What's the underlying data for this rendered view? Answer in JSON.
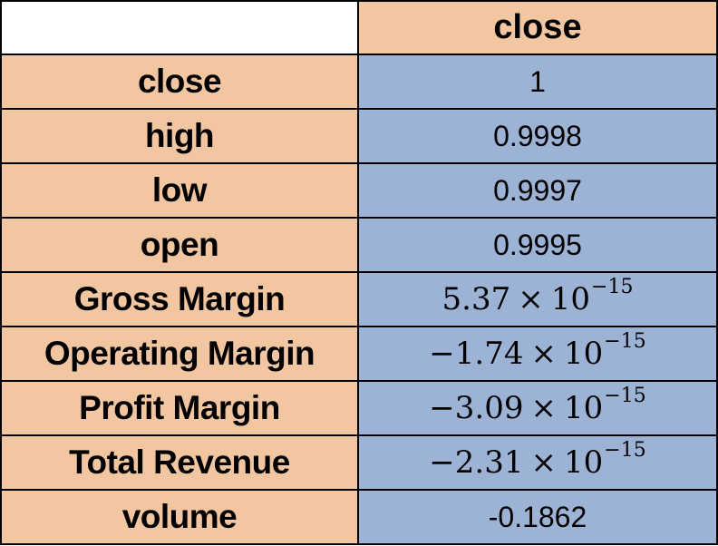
{
  "table": {
    "corner": "",
    "column_header": "close",
    "rows": [
      {
        "label": "close",
        "value": "1"
      },
      {
        "label": "high",
        "value": "0.9998"
      },
      {
        "label": "low",
        "value": "0.9997"
      },
      {
        "label": "open",
        "value": "0.9995"
      },
      {
        "label": "Gross Margin",
        "mantissa": "5.37",
        "times": "×",
        "base": "10",
        "exponent": "−15"
      },
      {
        "label": "Operating Margin",
        "mantissa": "−1.74",
        "times": "×",
        "base": "10",
        "exponent": "−15"
      },
      {
        "label": "Profit Margin",
        "mantissa": "−3.09",
        "times": "×",
        "base": "10",
        "exponent": "−15"
      },
      {
        "label": "Total Revenue",
        "mantissa": "−2.31",
        "times": "×",
        "base": "10",
        "exponent": "−15"
      },
      {
        "label": "volume",
        "value": "-0.1862"
      }
    ]
  },
  "colors": {
    "label_fill": "#f2c6a0",
    "value_fill": "#9db3d6",
    "border": "#000000"
  }
}
